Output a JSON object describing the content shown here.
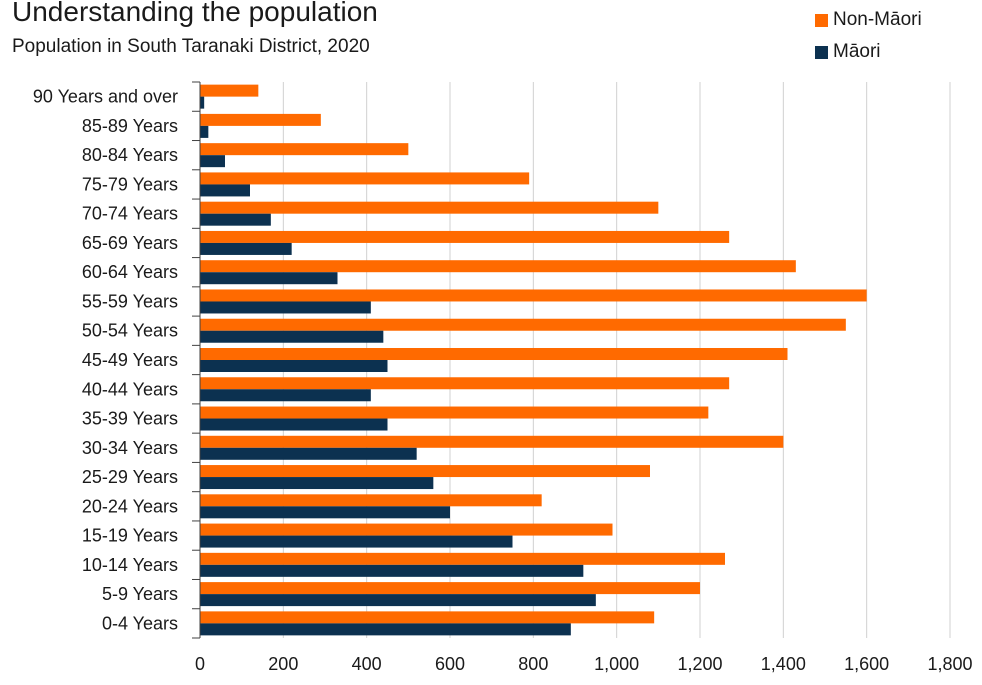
{
  "chart_data": {
    "type": "bar",
    "orientation": "horizontal",
    "title": "Understanding the population",
    "subtitle": "Population in South Taranaki District, 2020",
    "categories": [
      "90 Years and over",
      "85-89 Years",
      "80-84 Years",
      "75-79 Years",
      "70-74 Years",
      "65-69 Years",
      "60-64 Years",
      "55-59 Years",
      "50-54 Years",
      "45-49 Years",
      "40-44 Years",
      "35-39 Years",
      "30-34 Years",
      "25-29 Years",
      "20-24 Years",
      "15-19 Years",
      "10-14 Years",
      "5-9 Years",
      "0-4 Years"
    ],
    "series": [
      {
        "name": "Non-Māori",
        "color": "#ff6a00",
        "values": [
          140,
          290,
          500,
          790,
          1100,
          1270,
          1430,
          1600,
          1550,
          1410,
          1270,
          1220,
          1400,
          1080,
          820,
          990,
          1260,
          1200,
          1090
        ]
      },
      {
        "name": "Māori",
        "color": "#0c3150",
        "values": [
          10,
          20,
          60,
          120,
          170,
          220,
          330,
          410,
          440,
          450,
          410,
          450,
          520,
          560,
          600,
          750,
          920,
          950,
          890
        ]
      }
    ],
    "xlim": [
      0,
      1800
    ],
    "xticks": [
      "0",
      "200",
      "400",
      "600",
      "800",
      "1,000",
      "1,200",
      "1,400",
      "1,600",
      "1,800"
    ],
    "grid": true,
    "legend": "top-right"
  }
}
